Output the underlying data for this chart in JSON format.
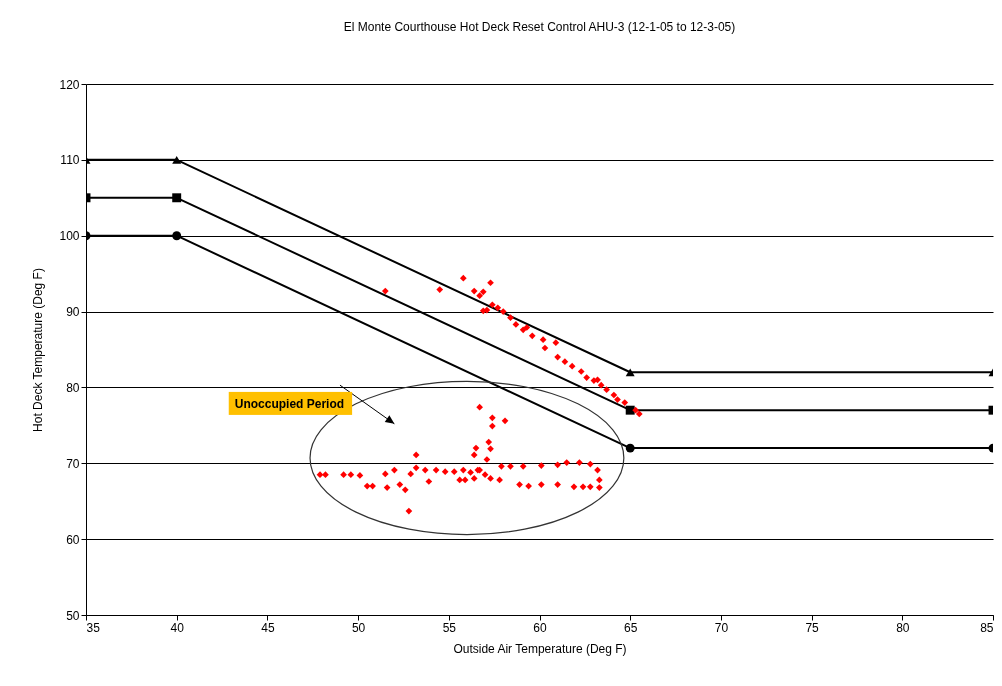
{
  "chart_data": {
    "type": "line",
    "title": "El Monte Courthouse Hot Deck Reset Control AHU-3 (12-1-05 to 12-3-05)",
    "xlabel": "Outside Air Temperature (Deg F)",
    "ylabel": "Hot Deck Temperature (Deg F)",
    "xlim": [
      35,
      85
    ],
    "xticks": [
      35,
      40,
      45,
      50,
      55,
      60,
      65,
      70,
      75,
      80,
      85
    ],
    "ylim": [
      50,
      120
    ],
    "yticks": [
      50,
      60,
      70,
      80,
      90,
      100,
      110,
      120
    ],
    "grid": "y",
    "annotations": [
      "Unoccupied Period"
    ],
    "series": [
      {
        "color": "#000000",
        "marker": "triangle",
        "x": [
          35,
          40,
          65,
          85
        ],
        "values": [
          110,
          110,
          82,
          82
        ]
      },
      {
        "color": "#000000",
        "marker": "square",
        "x": [
          35,
          40,
          65,
          85
        ],
        "values": [
          105,
          105,
          77,
          77
        ]
      },
      {
        "color": "#000000",
        "marker": "circle",
        "x": [
          35,
          40,
          65,
          85
        ],
        "values": [
          100,
          100,
          72,
          72
        ]
      },
      {
        "type": "scatter",
        "color": "#ff0000",
        "marker": "diamond",
        "x": [
          51.5,
          54.5,
          55.8,
          57.3,
          56.4,
          56.7,
          56.9,
          56.9,
          57.1,
          57.4,
          57.7,
          58.0,
          58.4,
          58.7,
          59.1,
          59.3,
          59.6,
          60.2,
          60.3,
          60.9,
          61.0,
          61.4,
          61.8,
          62.3,
          62.6,
          63.0,
          63.2,
          63.4,
          63.7,
          64.1,
          64.3,
          64.7,
          65.3,
          65.5,
          47.9,
          48.2,
          49.2,
          49.6,
          50.1,
          50.5,
          50.8,
          51.6,
          51.5,
          52.0,
          52.3,
          52.6,
          52.8,
          52.9,
          53.2,
          53.2,
          53.7,
          53.9,
          54.3,
          54.8,
          55.3,
          55.8,
          55.9,
          56.4,
          56.7,
          57.0,
          57.3,
          56.7,
          57.4,
          58.1,
          57.4,
          57.2,
          57.3,
          57.1,
          56.5,
          56.4,
          56.6,
          57.9,
          58.4,
          59.1,
          60.1,
          61.0,
          61.5,
          62.2,
          62.8,
          63.2,
          63.3,
          63.3,
          62.8,
          62.4,
          61.9,
          61.0,
          60.1,
          58.9,
          59.4,
          57.8,
          55.6,
          56.2
        ],
        "values": [
          92.7,
          92.9,
          94.4,
          93.8,
          92.7,
          92.1,
          92.6,
          90.1,
          90.2,
          90.9,
          90.5,
          90.0,
          89.2,
          88.3,
          87.6,
          87.9,
          86.8,
          86.3,
          85.2,
          85.9,
          84.0,
          83.4,
          82.8,
          82.1,
          81.3,
          80.9,
          81.0,
          80.3,
          79.7,
          79.0,
          78.4,
          78.0,
          77.0,
          76.5,
          68.5,
          68.5,
          68.5,
          68.5,
          68.4,
          67.0,
          67.0,
          66.8,
          68.6,
          69.1,
          67.2,
          66.5,
          63.7,
          68.6,
          69.4,
          71.1,
          69.1,
          67.6,
          69.1,
          68.9,
          68.9,
          69.1,
          67.8,
          68.0,
          69.1,
          68.5,
          68.0,
          77.4,
          76.0,
          75.6,
          74.9,
          72.8,
          71.9,
          70.5,
          72.0,
          71.1,
          69.1,
          69.6,
          69.6,
          69.6,
          69.7,
          69.8,
          70.1,
          70.1,
          69.9,
          69.1,
          67.8,
          66.8,
          66.9,
          66.9,
          66.9,
          67.2,
          67.2,
          67.2,
          67.0,
          67.8,
          67.8,
          68.8
        ]
      }
    ]
  }
}
